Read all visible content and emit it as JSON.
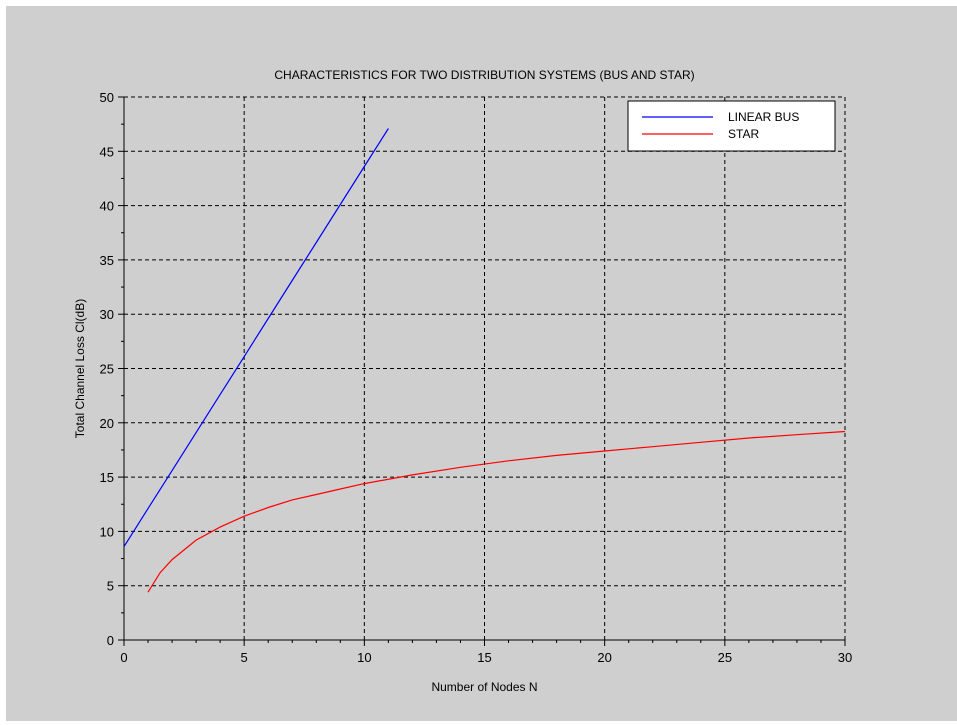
{
  "chart_data": {
    "type": "line",
    "title": "CHARACTERISTICS FOR TWO DISTRIBUTION SYSTEMS (BUS AND STAR)",
    "xlabel": "Number of Nodes N",
    "ylabel": "Total Channel Loss Cl(dB)",
    "xlim": [
      0,
      30
    ],
    "ylim": [
      0,
      50
    ],
    "xticks": [
      0,
      5,
      10,
      15,
      20,
      25,
      30
    ],
    "yticks": [
      0,
      5,
      10,
      15,
      20,
      25,
      30,
      35,
      40,
      45,
      50
    ],
    "grid": true,
    "legend_position": "top-right",
    "series": [
      {
        "name": "LINEAR BUS",
        "color": "#0000ff",
        "x": [
          0,
          1,
          2,
          3,
          4,
          5,
          6,
          7,
          8,
          9,
          10,
          11
        ],
        "y": [
          8.6,
          12.1,
          15.6,
          19.1,
          22.6,
          26.1,
          29.6,
          33.1,
          36.6,
          40.1,
          43.6,
          47.1
        ]
      },
      {
        "name": "STAR",
        "color": "#ff0000",
        "x": [
          1,
          1.5,
          2,
          3,
          4,
          5,
          6,
          7,
          8,
          9,
          10,
          12,
          14,
          16,
          18,
          20,
          22,
          24,
          26,
          28,
          30
        ],
        "y": [
          4.4,
          6.2,
          7.4,
          9.2,
          10.4,
          11.4,
          12.2,
          12.9,
          13.4,
          13.9,
          14.4,
          15.2,
          15.9,
          16.5,
          17.0,
          17.4,
          17.8,
          18.2,
          18.6,
          18.9,
          19.2
        ]
      }
    ]
  }
}
